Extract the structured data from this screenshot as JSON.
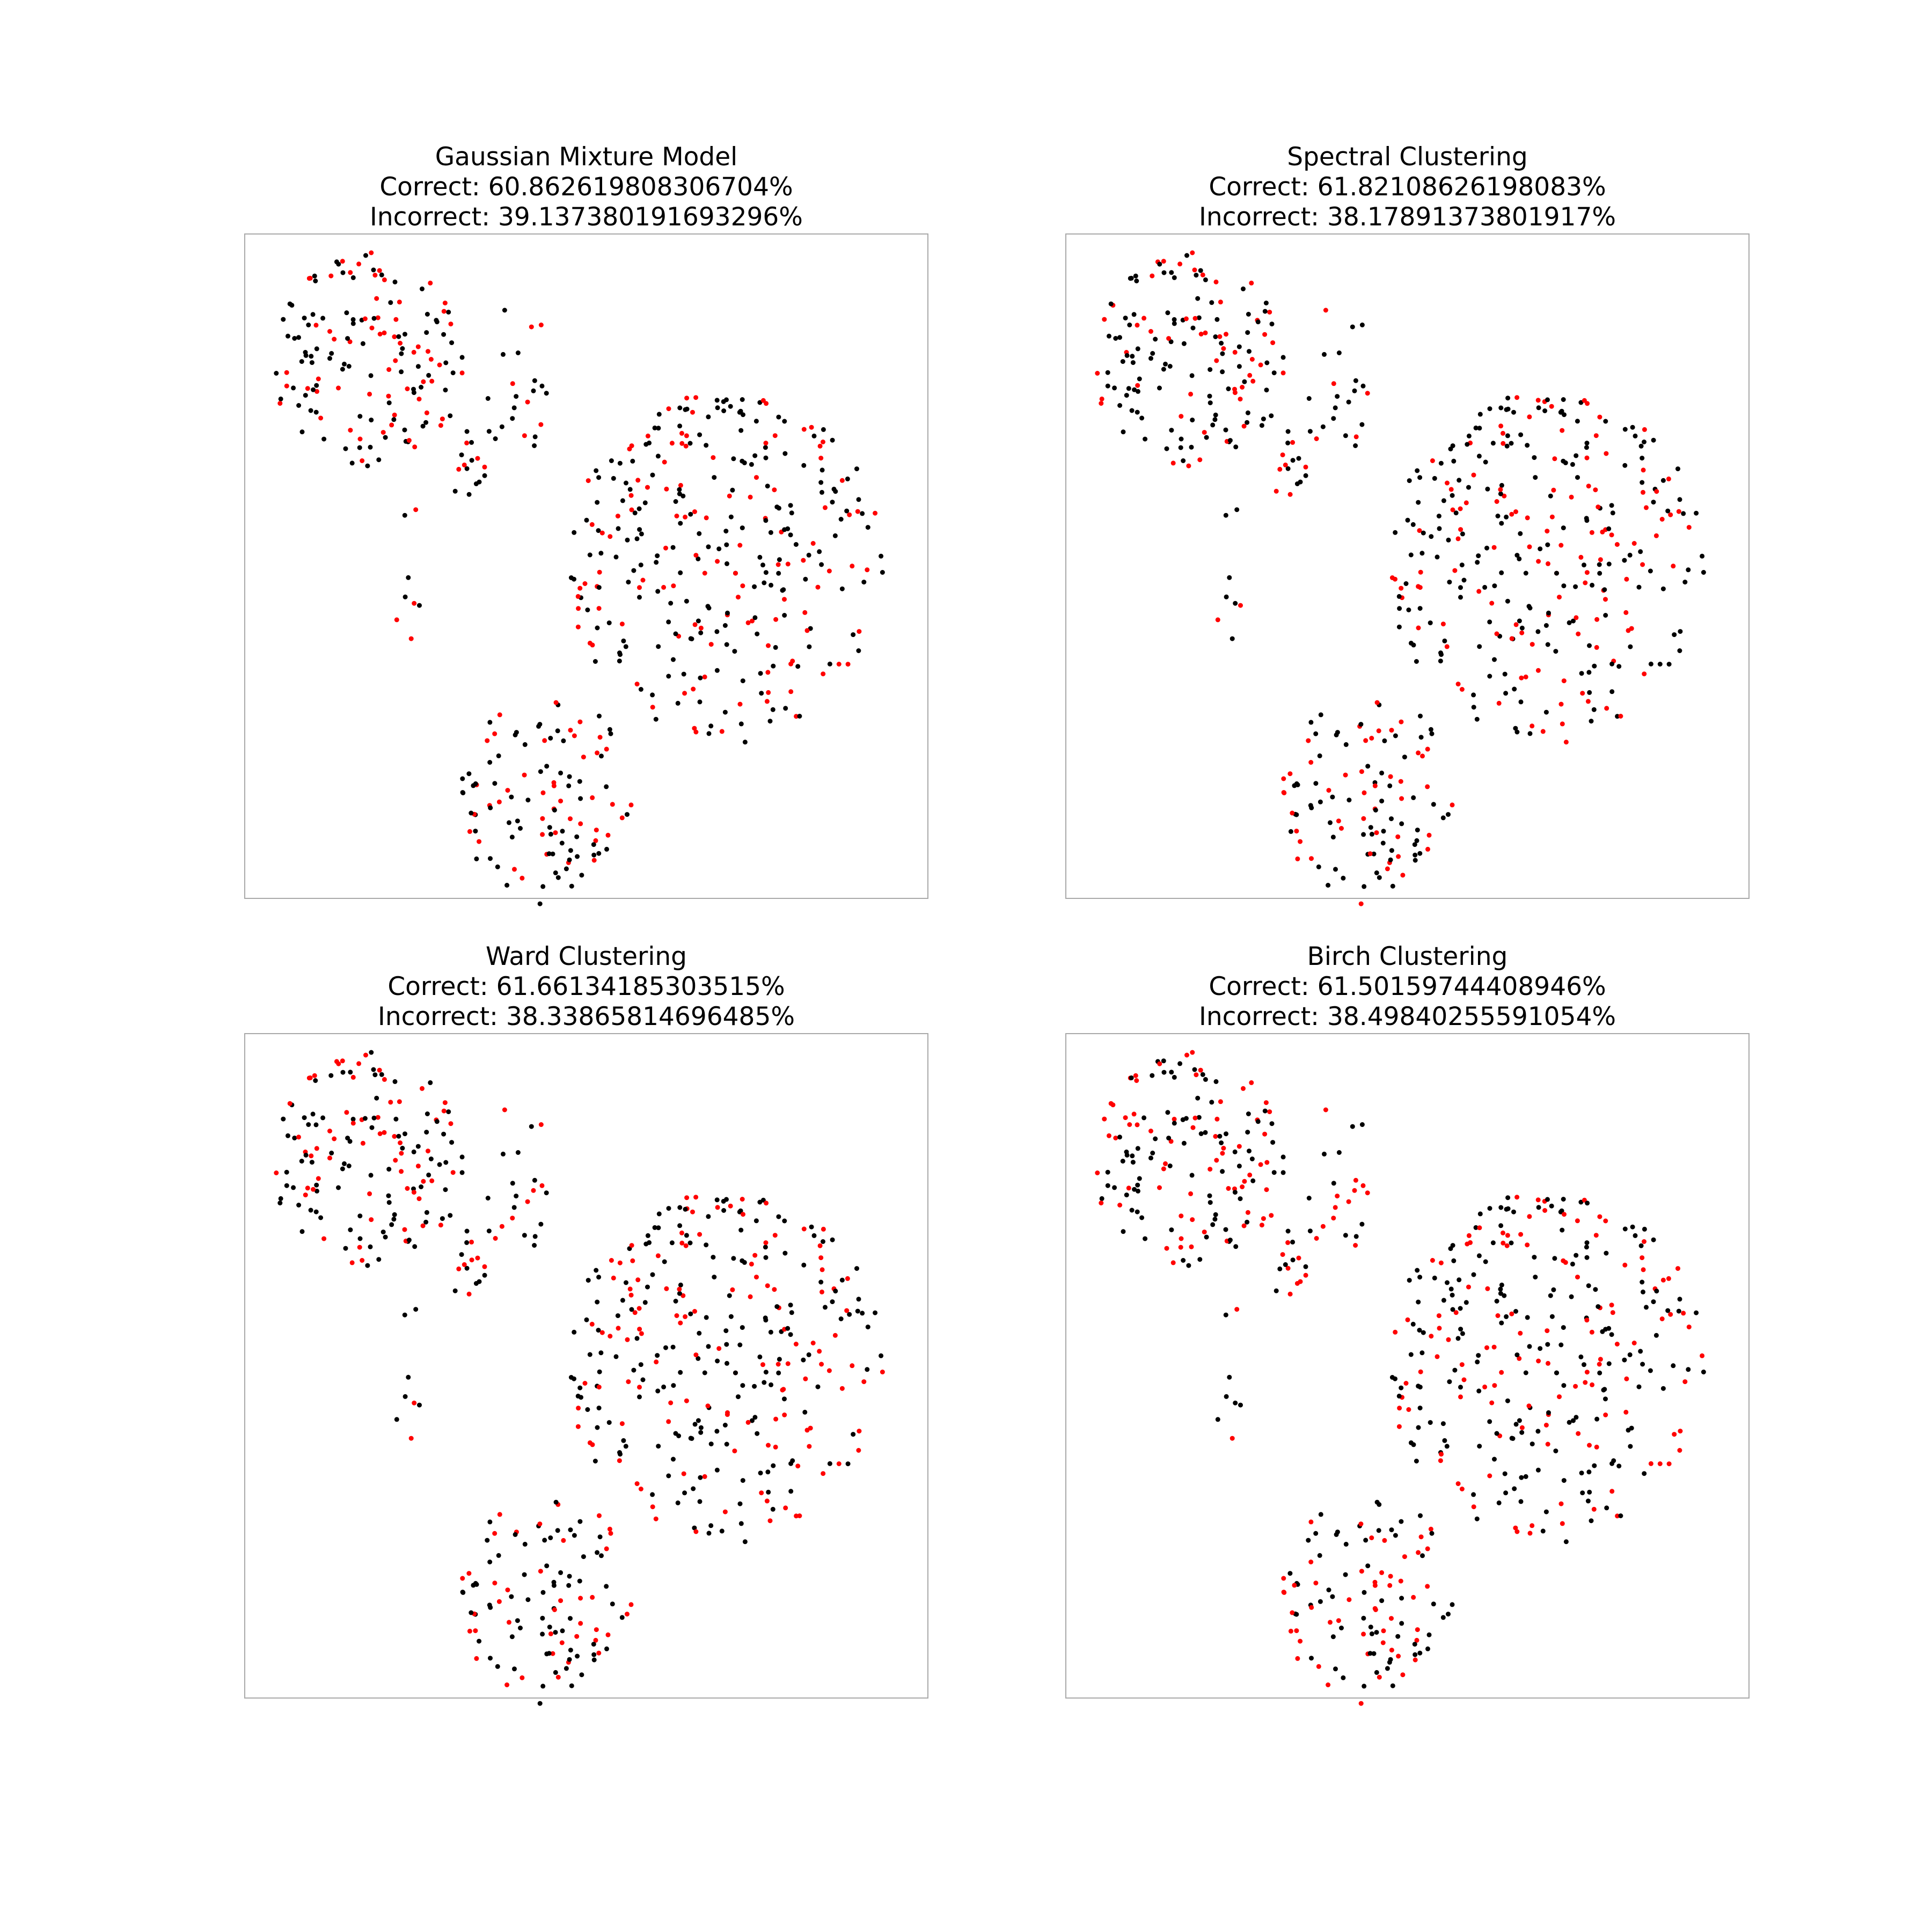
{
  "chart_data": [
    {
      "type": "scatter",
      "title": "Gaussian Mixture Model",
      "subtitle_lines": [
        "Correct: 60.862619808306704%",
        "Incorrect: 39.137380191693296%"
      ],
      "xlabel": "",
      "ylabel": "",
      "axes_visible": false,
      "grid": false,
      "colors": {
        "correct": "#000000",
        "incorrect": "#ff0000"
      },
      "point_seed": 1
    },
    {
      "type": "scatter",
      "title": "Spectral Clustering",
      "subtitle_lines": [
        "Correct: 61.82108626198083%",
        "Incorrect: 38.17891373801917%"
      ],
      "xlabel": "",
      "ylabel": "",
      "axes_visible": false,
      "grid": false,
      "colors": {
        "correct": "#000000",
        "incorrect": "#ff0000"
      },
      "point_seed": 2
    },
    {
      "type": "scatter",
      "title": "Ward Clustering",
      "subtitle_lines": [
        "Correct: 61.66134185303515%",
        "Incorrect: 38.33865814696485%"
      ],
      "xlabel": "",
      "ylabel": "",
      "axes_visible": false,
      "grid": false,
      "colors": {
        "correct": "#000000",
        "incorrect": "#ff0000"
      },
      "point_seed": 3
    },
    {
      "type": "scatter",
      "title": "Birch Clustering",
      "subtitle_lines": [
        "Correct: 61.50159744408946%",
        "Incorrect: 38.49840255591054%"
      ],
      "xlabel": "",
      "ylabel": "",
      "axes_visible": false,
      "grid": false,
      "colors": {
        "correct": "#000000",
        "incorrect": "#ff0000"
      },
      "point_seed": 4
    }
  ]
}
